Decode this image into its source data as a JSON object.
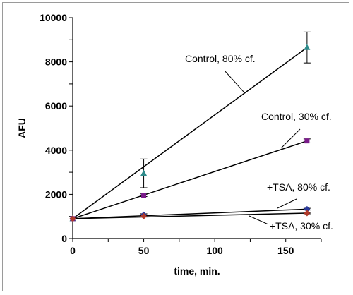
{
  "chart_data": {
    "type": "scatter",
    "title": "",
    "xlabel": "time, min.",
    "ylabel": "AFU",
    "xlim": [
      0,
      175
    ],
    "ylim": [
      0,
      10000
    ],
    "xticks": [
      0,
      50,
      100,
      150
    ],
    "yticks": [
      0,
      2000,
      4000,
      6000,
      8000,
      10000
    ],
    "grid": false,
    "legend": "none",
    "series": [
      {
        "name": "Control, 80% cf.",
        "x": [
          0,
          50,
          165
        ],
        "y": [
          900,
          2950,
          8650
        ],
        "err": [
          0,
          650,
          700
        ],
        "fit": [
          [
            0,
            900
          ],
          [
            165,
            8650
          ]
        ],
        "marker": "triangle",
        "color": "#2e8b8b"
      },
      {
        "name": "Control, 30% cf.",
        "x": [
          0,
          50,
          165
        ],
        "y": [
          900,
          1960,
          4420
        ],
        "err": [
          0,
          60,
          90
        ],
        "fit": [
          [
            0,
            900
          ],
          [
            165,
            4420
          ]
        ],
        "marker": "square",
        "color": "#7a1a8a"
      },
      {
        "name": "+TSA, 80% cf.",
        "x": [
          0,
          50,
          165
        ],
        "y": [
          900,
          1080,
          1330
        ],
        "err": [
          0,
          40,
          40
        ],
        "fit": [
          [
            0,
            900
          ],
          [
            165,
            1330
          ]
        ],
        "marker": "diamond",
        "color": "#2a3a9a"
      },
      {
        "name": "+TSA, 30% cf.",
        "x": [
          0,
          50,
          165
        ],
        "y": [
          900,
          1010,
          1150
        ],
        "err": [
          0,
          30,
          30
        ],
        "fit": [
          [
            0,
            900
          ],
          [
            165,
            1150
          ]
        ],
        "marker": "diamond",
        "color": "#b03a2a"
      }
    ]
  }
}
